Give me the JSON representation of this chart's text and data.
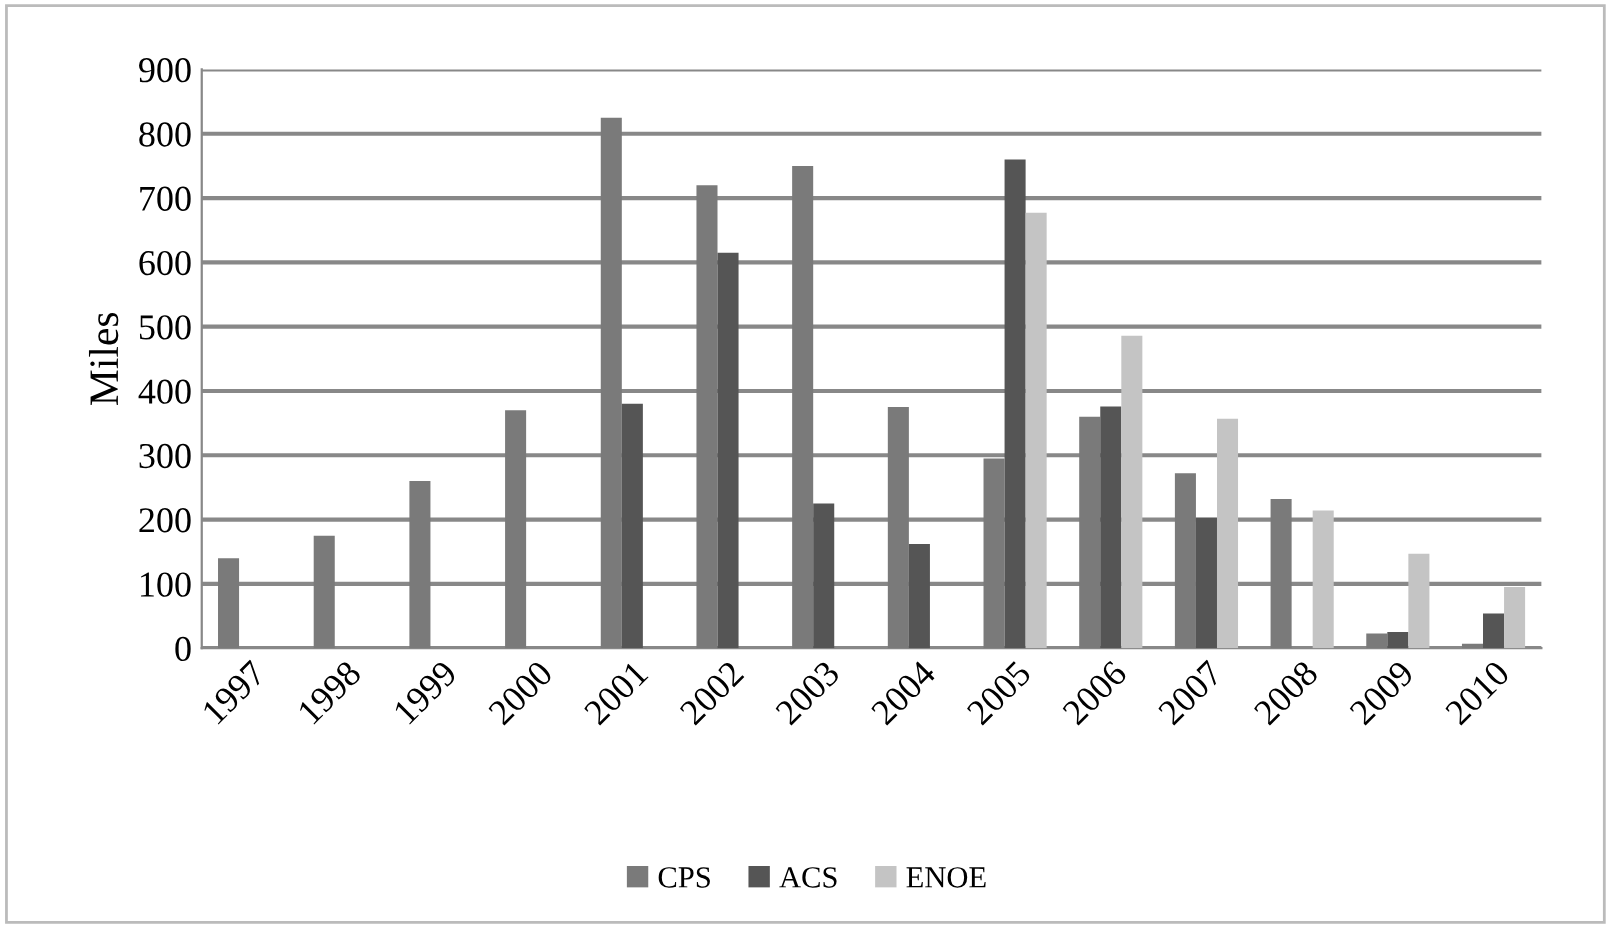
{
  "chart_data": {
    "type": "bar",
    "ylabel": "Miles",
    "categories": [
      "1997",
      "1998",
      "1999",
      "2000",
      "2001",
      "2002",
      "2003",
      "2004",
      "2005",
      "2006",
      "2007",
      "2008",
      "2009",
      "2010"
    ],
    "series": [
      {
        "name": "CPS",
        "color": "#7a7a7a",
        "values": [
          140,
          175,
          260,
          370,
          825,
          720,
          750,
          375,
          295,
          360,
          272,
          232,
          23,
          7
        ]
      },
      {
        "name": "ACS",
        "color": "#555555",
        "values": [
          null,
          null,
          null,
          null,
          380,
          615,
          225,
          162,
          760,
          376,
          203,
          null,
          25,
          54
        ]
      },
      {
        "name": "ENOE",
        "color": "#c4c4c4",
        "values": [
          null,
          null,
          null,
          null,
          null,
          null,
          null,
          null,
          677,
          486,
          357,
          214,
          147,
          95
        ]
      }
    ],
    "ylim": [
      0,
      900
    ],
    "yticks": [
      0,
      100,
      200,
      300,
      400,
      500,
      600,
      700,
      800,
      900
    ],
    "grid": "y",
    "legend": "bottom"
  }
}
